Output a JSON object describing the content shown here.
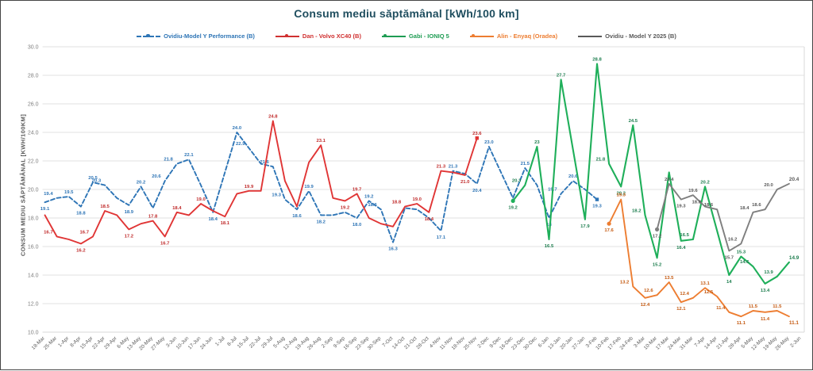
{
  "window": {
    "background": "#ffffff",
    "border_color": "#454545"
  },
  "title": "Consum mediu săptămânal [kWh/100 km]",
  "title_color": "#1f4e5f",
  "y_axis_title": "CONSUM MEDIU SĂPTĂMÂNAL [KWH/100KM]",
  "legend": {
    "position": "top",
    "items": [
      {
        "label": "Ovidiu-Model Y Performance (B)",
        "color": "#2E75B6",
        "line": "dashed",
        "marker": true
      },
      {
        "label": "Dan - Volvo XC40 (B)",
        "color": "#D03030",
        "line": "solid",
        "marker": true
      },
      {
        "label": "Gabi - IONIQ 5",
        "color": "#1E9C53",
        "line": "solid",
        "marker": true
      },
      {
        "label": "Alin - Enyaq (Oradea)",
        "color": "#ED7D31",
        "line": "solid",
        "marker": true
      },
      {
        "label": "Ovidiu - Model Y 2025 (B)",
        "color": "#595959",
        "line": "solid",
        "marker": false
      }
    ]
  },
  "chart_data": {
    "type": "line",
    "title": "Consum mediu săptămânal [kWh/100 km]",
    "xlabel": "",
    "ylabel": "CONSUM MEDIU SĂPTĂMÂNAL [KWH/100KM]",
    "ylim": [
      10,
      30
    ],
    "yticks": [
      30,
      28,
      26,
      24,
      22,
      20,
      18,
      16,
      14,
      12,
      10
    ],
    "ytick_labels": [
      "30.0",
      "28.0",
      "26.0",
      "24.0",
      "22.0",
      "20.0",
      "18.0",
      "16.0",
      "14.0",
      "12.0",
      "10.0"
    ],
    "grid": true,
    "grid_color": "#d9d9d9",
    "tick_color": "#7f7f7f",
    "categories": [
      "18-Mar",
      "25-Mar",
      "1-Apr",
      "8-Apr",
      "15-Apr",
      "22-Apr",
      "29-Apr",
      "6-May",
      "13-May",
      "20-May",
      "27-May",
      "3-Jun",
      "10-Jun",
      "17-Jun",
      "24-Jun",
      "1-Jul",
      "8-Jul",
      "15-Jul",
      "22-Jul",
      "29-Jul",
      "5-Aug",
      "12-Aug",
      "19-Aug",
      "26-Aug",
      "2-Sep",
      "9-Sep",
      "16-Sep",
      "23-Sep",
      "30-Sep",
      "7-Oct",
      "14-Oct",
      "21-Oct",
      "28-Oct",
      "4-Nov",
      "11-Nov",
      "18-Nov",
      "25-Nov",
      "2-Dec",
      "9-Dec",
      "16-Dec",
      "23-Dec",
      "30-Dec",
      "6-Jan",
      "13-Jan",
      "20-Jan",
      "27-Jan",
      "3-Feb",
      "10-Feb",
      "17-Feb",
      "24-Feb",
      "3-Mar",
      "10-Mar",
      "17-Mar",
      "24-Mar",
      "31-Mar",
      "7-Apr",
      "14-Apr",
      "21-Apr",
      "28-Apr",
      "5-May",
      "12-May",
      "19-May",
      "26-May",
      "2-Jun"
    ],
    "series": [
      {
        "name": "Ovidiu-Model Y Performance (B)",
        "color": "#2E75B6",
        "label_color": "#2E75B6",
        "dash": "5,3",
        "width": 1.9,
        "start": 0,
        "marker_first": false,
        "marker_last": true,
        "values": [
          19.1,
          19.4,
          19.5,
          18.8,
          20.5,
          20.3,
          19.4,
          18.9,
          20.2,
          18.7,
          20.6,
          21.8,
          22.1,
          20.3,
          18.4,
          21.2,
          24.0,
          22.9,
          21.8,
          21.6,
          19.3,
          18.6,
          19.9,
          18.2,
          18.2,
          18.4,
          18.0,
          19.2,
          18.6,
          16.3,
          18.7,
          18.6,
          18.0,
          17.1,
          21.3,
          21.1,
          20.4,
          23.0,
          21.2,
          19.4,
          21.5,
          20.3,
          18.0,
          19.7,
          20.6,
          20.0,
          19.3
        ],
        "labels": [
          "19.1",
          "19.4",
          "19.5",
          "18.8",
          "20.5",
          "20.3",
          null,
          "18.9",
          "20.2",
          null,
          "20.6",
          "21.8",
          "22.1",
          null,
          "18.4",
          null,
          "24.0",
          "22.9",
          null,
          "21.6",
          "19.3",
          "18.6",
          "19.9",
          "18.2",
          null,
          null,
          "18.0",
          "19.2",
          "18.6",
          "16.3",
          null,
          null,
          null,
          "17.1",
          "21.3",
          null,
          "20.4",
          "23.0",
          null,
          null,
          "21.5",
          null,
          "18",
          "19.7",
          "20.6",
          null,
          "19.3"
        ]
      },
      {
        "name": "Dan - Volvo XC40 (B)",
        "color": "#E03535",
        "label_color": "#C02B2B",
        "dash": null,
        "width": 1.9,
        "start": 0,
        "marker_first": false,
        "marker_last": true,
        "values": [
          18.2,
          16.7,
          16.5,
          16.2,
          16.7,
          18.5,
          18.2,
          17.2,
          17.6,
          17.8,
          16.7,
          18.4,
          18.2,
          19.0,
          18.5,
          18.1,
          19.7,
          19.9,
          19.9,
          24.8,
          20.6,
          18.8,
          21.9,
          23.1,
          19.4,
          19.2,
          19.7,
          18.0,
          17.6,
          17.4,
          18.8,
          19.0,
          18.4,
          21.3,
          21.2,
          21.0,
          23.6
        ],
        "labels": [
          null,
          "16.7",
          null,
          "16.2",
          "16.7",
          "18.5",
          null,
          "17.2",
          null,
          "17.8",
          "16.7",
          "18.4",
          null,
          "19.0",
          null,
          "18.1",
          null,
          "19.9",
          null,
          "24.8",
          null,
          null,
          null,
          "23.1",
          null,
          "19.2",
          "19.7",
          null,
          null,
          null,
          "18.8",
          "19.0",
          "18.4",
          "21.3",
          null,
          "21.0",
          "23.6"
        ]
      },
      {
        "name": "Gabi - IONIQ 5",
        "color": "#1FAF5A",
        "label_color": "#1E7E4F",
        "dash": null,
        "width": 2.1,
        "start": 39,
        "marker_first": true,
        "marker_last": false,
        "values": [
          19.2,
          20.3,
          23.0,
          16.5,
          27.7,
          22.8,
          17.9,
          28.8,
          21.8,
          20.2,
          24.5,
          18.2,
          15.2,
          21.2,
          16.4,
          16.5,
          20.2,
          17.1,
          14.0,
          15.3,
          14.6,
          13.4,
          13.9,
          14.9
        ],
        "labels": [
          "19.2",
          "20.3",
          "23",
          "16.5",
          "27.7",
          null,
          "17.9",
          "28.8",
          "21.8",
          "20.2",
          "24.5",
          "18.2",
          "15.2",
          null,
          "16.4",
          "16.5",
          "20.2",
          null,
          "14",
          "15.3",
          "14.6",
          "13.4",
          "13.9",
          "14.9"
        ]
      },
      {
        "name": "Alin - Enyaq (Oradea)",
        "color": "#ED7D31",
        "label_color": "#C55A11",
        "dash": null,
        "width": 1.9,
        "start": 47,
        "marker_first": true,
        "marker_last": false,
        "values": [
          17.6,
          19.3,
          13.2,
          12.4,
          12.6,
          13.5,
          12.1,
          12.4,
          13.1,
          12.5,
          11.4,
          11.1,
          11.5,
          11.4,
          11.5,
          11.1
        ],
        "labels": [
          "17.6",
          "19.3",
          "13.2",
          "12.4",
          "12.6",
          "13.5",
          "12.1",
          "12.4",
          "13.1",
          "12.5",
          "11.4",
          "11.1",
          "11.5",
          "11.4",
          "11.5",
          "11.1"
        ]
      },
      {
        "name": "Ovidiu - Model Y 2025 (B)",
        "color": "#7F7F7F",
        "label_color": "#595959",
        "dash": null,
        "width": 1.9,
        "start": 51,
        "marker_first": true,
        "marker_last": false,
        "values": [
          17.2,
          20.4,
          19.3,
          19.6,
          18.8,
          18.6,
          15.7,
          16.2,
          18.4,
          18.6,
          20.0,
          20.4
        ],
        "labels": [
          "17.2",
          "20.4",
          "19.3",
          "19.6",
          "18.8",
          "18.6",
          "15.7",
          "16.2",
          "18.4",
          "18.6",
          "20.0",
          "20.4"
        ]
      }
    ],
    "legend_position": "top",
    "x_label_rotation": -45
  }
}
